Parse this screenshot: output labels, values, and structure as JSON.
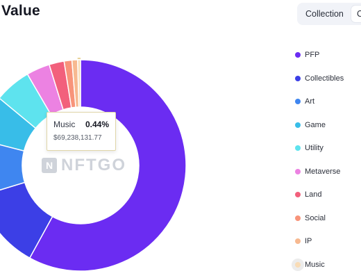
{
  "header": {
    "title": "Value",
    "tabs": [
      {
        "label": "Collection",
        "active": true
      },
      {
        "label": "C",
        "active": false
      }
    ]
  },
  "watermark": {
    "text": "NFTGO",
    "logo_text": "N"
  },
  "tooltip": {
    "category": "Music",
    "percent": "0.44%",
    "value": "$69,238,131.77"
  },
  "chart_data": {
    "type": "pie",
    "donut": true,
    "categories": [
      "PFP",
      "Collectibles",
      "Art",
      "Game",
      "Utility",
      "Metaverse",
      "Land",
      "Social",
      "IP",
      "Music"
    ],
    "values": [
      58.0,
      12.3,
      8.7,
      7.0,
      5.6,
      3.6,
      2.3,
      1.2,
      0.86,
      0.44
    ],
    "colors": [
      "#6b2cf2",
      "#3c3fe6",
      "#3f86f0",
      "#38bde8",
      "#5ee3ee",
      "#ec82e2",
      "#f2607c",
      "#f8947a",
      "#f7b990",
      "#f9dcb6"
    ],
    "highlighted": "Music"
  },
  "legend": {
    "items": [
      {
        "label": "PFP",
        "color": "#6b2cf2"
      },
      {
        "label": "Collectibles",
        "color": "#3c3fe6"
      },
      {
        "label": "Art",
        "color": "#3f86f0"
      },
      {
        "label": "Game",
        "color": "#38bde8"
      },
      {
        "label": "Utility",
        "color": "#5ee3ee"
      },
      {
        "label": "Metaverse",
        "color": "#ec82e2"
      },
      {
        "label": "Land",
        "color": "#f2607c"
      },
      {
        "label": "Social",
        "color": "#f8947a"
      },
      {
        "label": "IP",
        "color": "#f7b990"
      },
      {
        "label": "Music",
        "color": "#f9dcb6",
        "highlight": true
      }
    ]
  }
}
